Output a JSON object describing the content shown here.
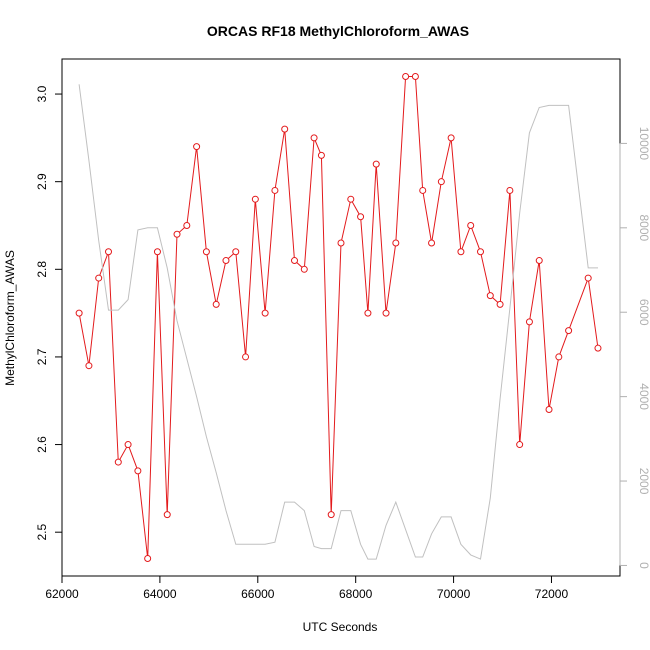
{
  "chart_data": {
    "type": "line",
    "title": "ORCAS RF18 MethylChloroform_AWAS",
    "xlabel": "UTC Seconds",
    "ylabel": "MethylChloroform_AWAS",
    "xlim": [
      62000,
      73400
    ],
    "ylim": [
      2.45,
      3.04
    ],
    "y2lim": [
      -250,
      12000
    ],
    "x_ticks": [
      62000,
      64000,
      66000,
      68000,
      70000,
      72000
    ],
    "y_ticks": [
      2.5,
      2.6,
      2.7,
      2.8,
      2.9,
      3.0
    ],
    "y2_ticks": [
      0,
      2000,
      4000,
      6000,
      8000,
      10000
    ],
    "grid": false,
    "series": [
      {
        "axis": "left",
        "color": "#e31a1c",
        "marker": "open-circle",
        "x": [
          62350,
          62550,
          62750,
          62950,
          63150,
          63350,
          63550,
          63750,
          63950,
          64150,
          64350,
          64550,
          64750,
          64950,
          65150,
          65350,
          65550,
          65750,
          65950,
          66150,
          66350,
          66550,
          66750,
          66950,
          67150,
          67300,
          67500,
          67700,
          67900,
          68100,
          68250,
          68420,
          68620,
          68820,
          69020,
          69220,
          69370,
          69550,
          69750,
          69950,
          70150,
          70350,
          70550,
          70750,
          70950,
          71150,
          71350,
          71550,
          71750,
          71950,
          72150,
          72350,
          72750,
          72950
        ],
        "y": [
          2.75,
          2.69,
          2.79,
          2.82,
          2.58,
          2.6,
          2.57,
          2.47,
          2.82,
          2.52,
          2.84,
          2.85,
          2.94,
          2.82,
          2.76,
          2.81,
          2.82,
          2.7,
          2.88,
          2.75,
          2.89,
          2.96,
          2.81,
          2.8,
          2.95,
          2.93,
          2.52,
          2.83,
          2.88,
          2.86,
          2.75,
          2.92,
          2.75,
          2.83,
          3.02,
          3.02,
          2.89,
          2.83,
          2.9,
          2.95,
          2.82,
          2.85,
          2.82,
          2.77,
          2.76,
          2.89,
          2.6,
          2.74,
          2.81,
          2.64,
          2.7,
          2.73,
          2.79,
          2.71
        ]
      },
      {
        "axis": "right",
        "color": "#c0c0c0",
        "marker": "none",
        "x": [
          62350,
          62550,
          62750,
          62950,
          63150,
          63350,
          63550,
          63750,
          63950,
          64150,
          64350,
          64550,
          64750,
          64950,
          65150,
          65350,
          65550,
          65750,
          65950,
          66150,
          66350,
          66550,
          66750,
          66950,
          67150,
          67300,
          67500,
          67700,
          67900,
          68100,
          68250,
          68420,
          68620,
          68820,
          69020,
          69220,
          69370,
          69550,
          69750,
          69950,
          70150,
          70350,
          70550,
          70750,
          70950,
          71150,
          71350,
          71550,
          71750,
          71950,
          72150,
          72350,
          72750,
          72950
        ],
        "y": [
          11400,
          9600,
          7700,
          6050,
          6050,
          6300,
          7950,
          8000,
          8000,
          7050,
          5800,
          4900,
          4000,
          3050,
          2200,
          1300,
          500,
          500,
          500,
          500,
          550,
          1500,
          1500,
          1300,
          450,
          400,
          400,
          1300,
          1300,
          500,
          150,
          150,
          950,
          1500,
          850,
          200,
          200,
          750,
          1150,
          1150,
          500,
          250,
          150,
          1600,
          3950,
          6100,
          8350,
          10250,
          10850,
          10900,
          10900,
          10900,
          7050,
          7050
        ]
      }
    ]
  }
}
